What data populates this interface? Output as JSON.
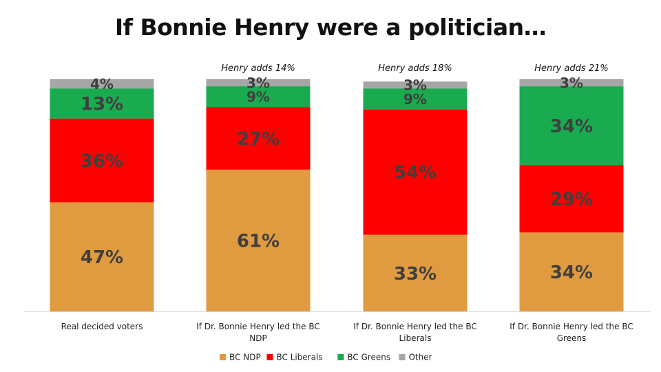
{
  "chart_data": {
    "type": "bar",
    "stacked": true,
    "title": "If Bonnie Henry were a politician…",
    "categories": [
      "Real decided voters",
      "If Dr. Bonnie Henry led the BC NDP",
      "If Dr. Bonnie Henry led the BC Liberals",
      "If Dr. Bonnie Henry led the BC Greens"
    ],
    "category_lines": [
      [
        "Real decided voters"
      ],
      [
        "If Dr. Bonnie Henry led the BC",
        "NDP"
      ],
      [
        "If Dr. Bonnie Henry led the BC",
        "Liberals"
      ],
      [
        "If Dr. Bonnie Henry led the BC",
        "Greens"
      ]
    ],
    "annotations": [
      "",
      "Henry adds 14%",
      "Henry adds 18%",
      "Henry adds 21%"
    ],
    "series": [
      {
        "name": "BC NDP",
        "color": "#e09b40",
        "values": [
          47,
          61,
          33,
          34
        ],
        "labels": [
          "47%",
          "61%",
          "33%",
          "34%"
        ]
      },
      {
        "name": "BC Liberals",
        "color": "#ff0000",
        "values": [
          36,
          27,
          54,
          29
        ],
        "labels": [
          "36%",
          "27%",
          "54%",
          "29%"
        ]
      },
      {
        "name": "BC Greens",
        "color": "#1aaa50",
        "values": [
          13,
          9,
          9,
          34
        ],
        "labels": [
          "13%",
          "9%",
          "9%",
          "34%"
        ]
      },
      {
        "name": "Other",
        "color": "#a6a6a6",
        "values": [
          4,
          3,
          3,
          3
        ],
        "labels": [
          "4%",
          "3%",
          "3%",
          "3%"
        ]
      }
    ],
    "ylim": [
      0,
      100
    ],
    "grid": false,
    "legend": "bottom",
    "xlabel": "",
    "ylabel": ""
  }
}
